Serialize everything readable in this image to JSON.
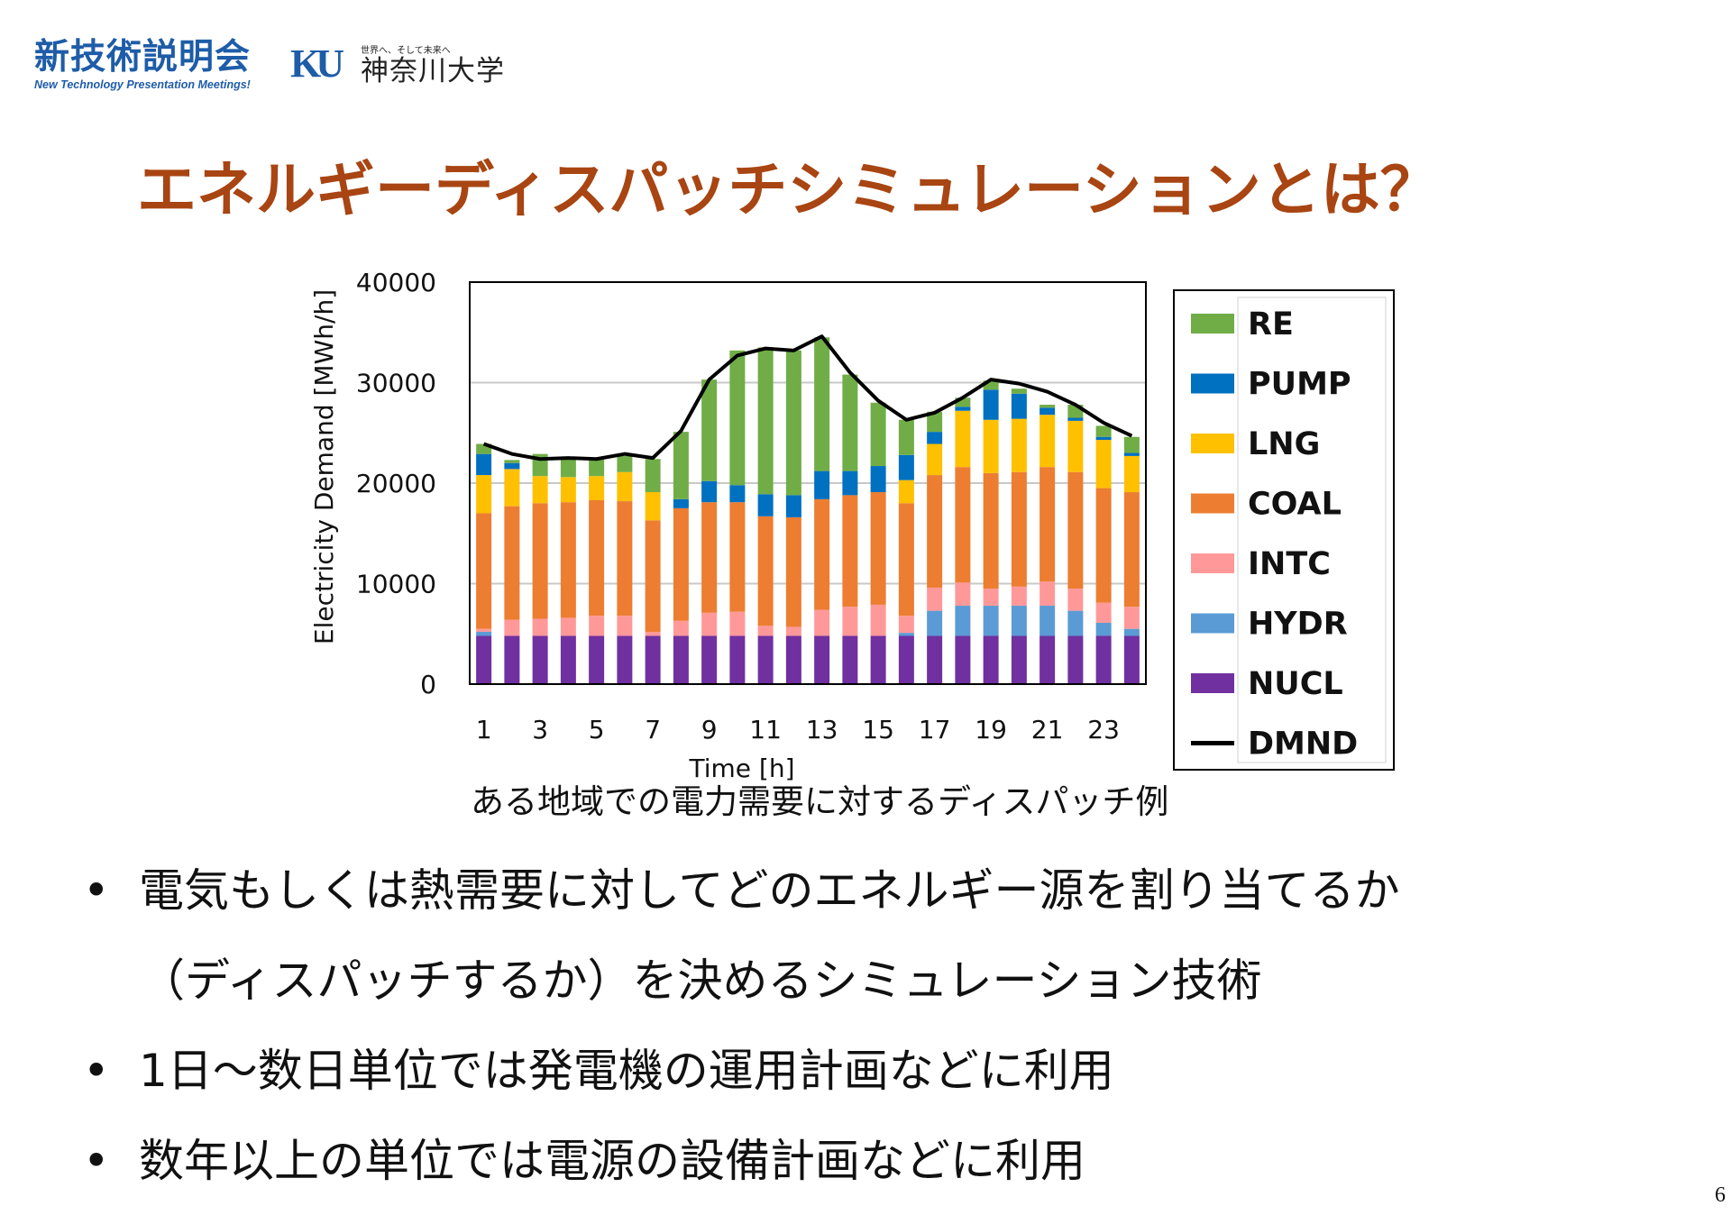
{
  "logos": {
    "event_jp": "新技術説明会",
    "event_en": "New Technology Presentation Meetings!",
    "univ_mark": "KU",
    "univ_tagline": "世界へ、そして未来へ",
    "univ_name": "神奈川大学"
  },
  "title": "エネルギーディスパッチシミュレーションとは？",
  "caption": "ある地域での電力需要に対するディスパッチ例",
  "bullets": [
    {
      "bullet": "•",
      "lines": [
        "電気もしくは熱需要に対してどのエネルギー源を割り当てるか",
        "（ディスパッチするか）を決めるシミュレーション技術"
      ]
    },
    {
      "bullet": "•",
      "lines": [
        "1日〜数日単位では発電機の運用計画などに利用"
      ]
    },
    {
      "bullet": "•",
      "lines": [
        "数年以上の単位では電源の設備計画などに利用"
      ]
    }
  ],
  "page_number": "6",
  "chart_data": {
    "type": "bar",
    "stacked": true,
    "xlabel": "Time [h]",
    "ylabel": "Electricity Demand [MWh/h]",
    "ylim": [
      0,
      40000
    ],
    "yticks": [
      0,
      10000,
      20000,
      30000,
      40000
    ],
    "xtick_labels": [
      "1",
      "3",
      "5",
      "7",
      "9",
      "11",
      "13",
      "15",
      "17",
      "19",
      "21",
      "23"
    ],
    "grid": true,
    "legend_position": "right",
    "categories": [
      "1",
      "2",
      "3",
      "4",
      "5",
      "6",
      "7",
      "8",
      "9",
      "10",
      "11",
      "12",
      "13",
      "14",
      "15",
      "16",
      "17",
      "18",
      "19",
      "20",
      "21",
      "22",
      "23",
      "24"
    ],
    "series": [
      {
        "name": "NUCL",
        "color": "#7030a0",
        "values": [
          4800,
          4800,
          4800,
          4800,
          4800,
          4800,
          4800,
          4800,
          4800,
          4800,
          4800,
          4800,
          4800,
          4800,
          4800,
          4800,
          4800,
          4800,
          4800,
          4800,
          4800,
          4800,
          4800,
          4800
        ]
      },
      {
        "name": "HYDR",
        "color": "#5b9bd5",
        "values": [
          400,
          0,
          0,
          0,
          0,
          0,
          0,
          0,
          0,
          0,
          0,
          0,
          0,
          0,
          0,
          300,
          2500,
          3000,
          3000,
          3000,
          3000,
          2500,
          1300,
          700
        ]
      },
      {
        "name": "INTC",
        "color": "#ff9999",
        "values": [
          300,
          1600,
          1700,
          1800,
          2000,
          2000,
          400,
          1500,
          2300,
          2400,
          1000,
          900,
          2600,
          2900,
          3100,
          1700,
          2300,
          2300,
          1700,
          1900,
          2400,
          2200,
          2000,
          2200
        ]
      },
      {
        "name": "COAL",
        "color": "#ed7d31",
        "values": [
          11500,
          11300,
          11500,
          11500,
          11500,
          11400,
          11100,
          11200,
          11000,
          10900,
          10900,
          10900,
          11000,
          11100,
          11200,
          11200,
          11200,
          11500,
          11500,
          11400,
          11400,
          11600,
          11400,
          11400
        ]
      },
      {
        "name": "LNG",
        "color": "#ffc000",
        "values": [
          3800,
          3700,
          2700,
          2500,
          2400,
          2900,
          2800,
          0,
          0,
          0,
          0,
          0,
          0,
          0,
          0,
          2300,
          3100,
          5600,
          5300,
          5300,
          5200,
          5100,
          4800,
          3600
        ]
      },
      {
        "name": "PUMP",
        "color": "#0070c0",
        "values": [
          2100,
          600,
          0,
          0,
          0,
          0,
          0,
          900,
          2100,
          1700,
          2200,
          2200,
          2800,
          2400,
          2600,
          2500,
          1200,
          400,
          3000,
          2500,
          700,
          300,
          300,
          300
        ]
      },
      {
        "name": "RE",
        "color": "#70ad47",
        "values": [
          1000,
          300,
          2200,
          1800,
          1800,
          1600,
          3300,
          6700,
          10100,
          13400,
          14600,
          14400,
          13300,
          9600,
          6300,
          3500,
          2000,
          900,
          900,
          500,
          300,
          1300,
          1100,
          1600
        ]
      },
      {
        "name": "DMND",
        "color": "#000000",
        "type": "line",
        "values": [
          23900,
          22900,
          22400,
          22500,
          22400,
          22900,
          22500,
          25200,
          30300,
          32700,
          33400,
          33200,
          34600,
          31000,
          28200,
          26300,
          27000,
          28500,
          30300,
          29900,
          29100,
          27800,
          26000,
          24700
        ]
      }
    ]
  }
}
